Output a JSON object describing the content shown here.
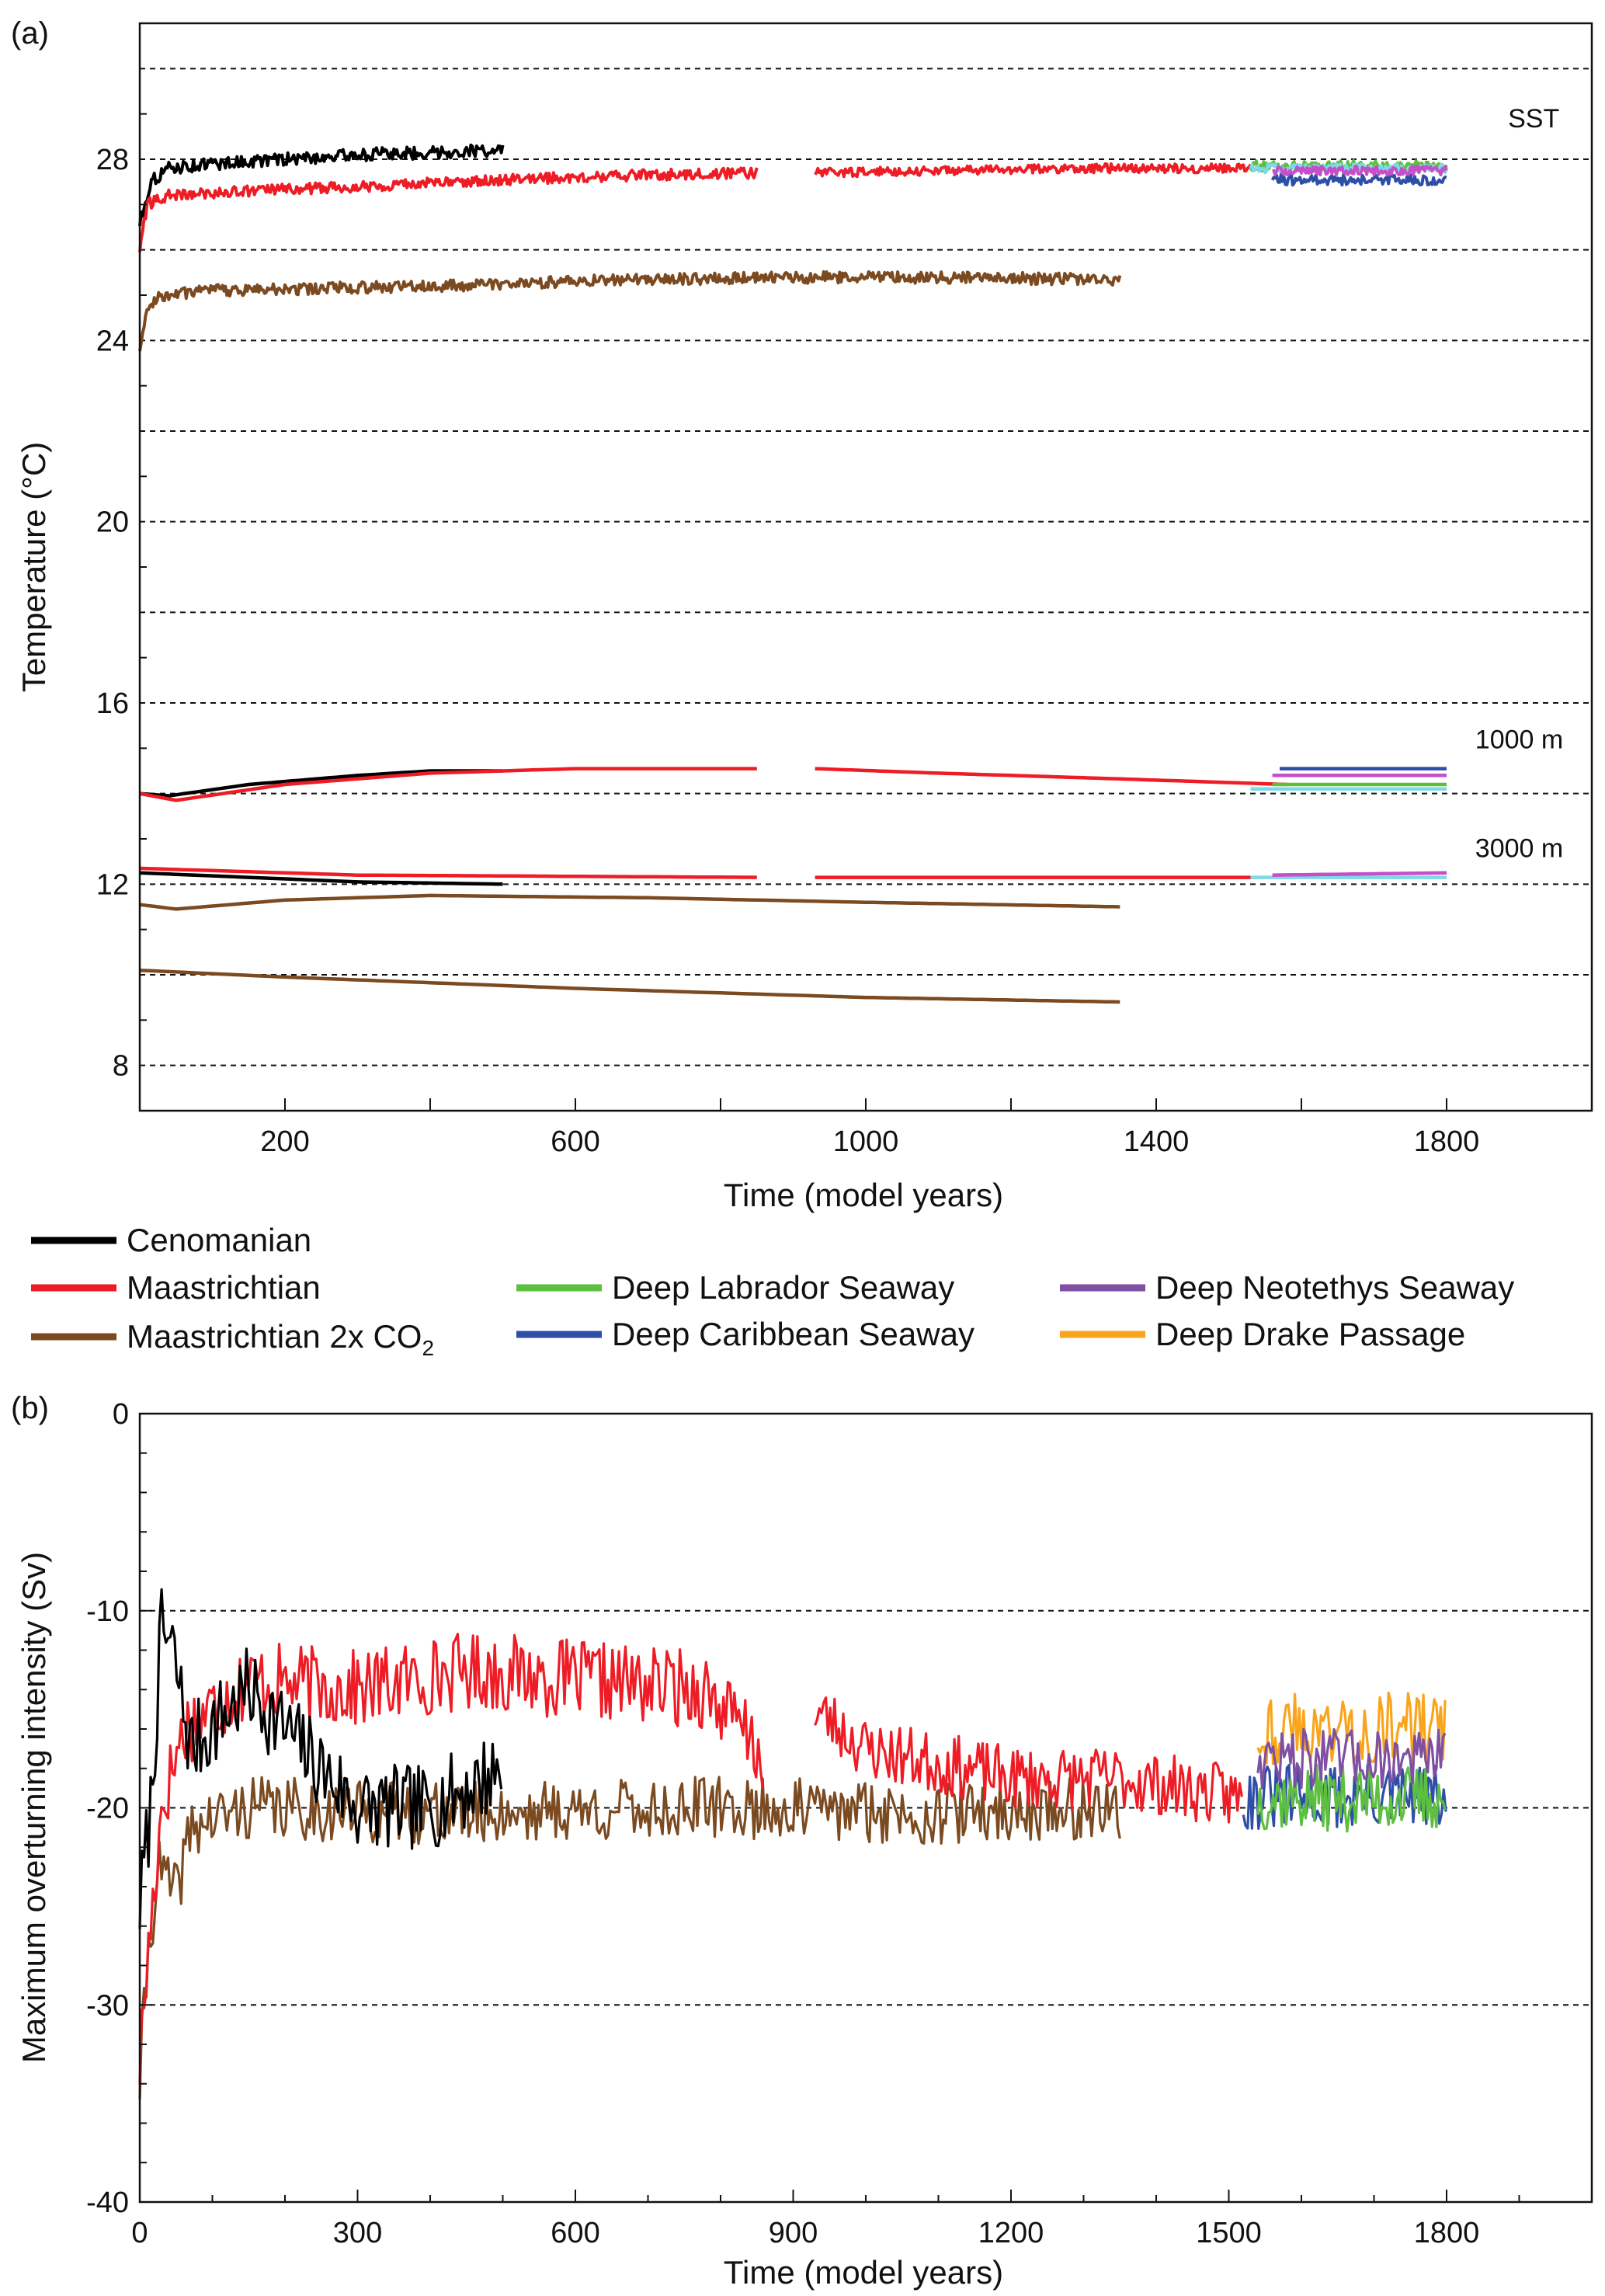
{
  "figure": {
    "legend": {
      "entries": [
        {
          "label": "Cenomanian",
          "color": "#000000"
        },
        {
          "label": "Maastrichtian",
          "color": "#ee1c25"
        },
        {
          "label": "Maastrichtian 2x CO",
          "subscript": "2",
          "color": "#7b4a20"
        },
        {
          "label": "Deep Labrador Seaway",
          "color": "#5cbf3f"
        },
        {
          "label": "Deep Caribbean Seaway",
          "color": "#2e4ea8"
        },
        {
          "label": "Deep Neotethys Seaway",
          "color": "#7e4fa2"
        },
        {
          "label": "Deep Drake Passage",
          "color": "#f9a51b"
        }
      ]
    }
  },
  "chart_data": [
    {
      "id": "a",
      "panel_label": "(a)",
      "type": "line",
      "title": "",
      "xlabel": "Time (model years)",
      "ylabel": "Temperature (°C)",
      "xlim": [
        0,
        2000
      ],
      "ylim": [
        7,
        31
      ],
      "xticks_labeled": [
        200,
        600,
        1000,
        1400,
        1800
      ],
      "xticks_minor": [
        400,
        800,
        1200,
        1600
      ],
      "yticks_labeled": [
        8,
        12,
        16,
        20,
        24,
        28
      ],
      "gridlines_y": [
        8,
        10,
        12,
        14,
        16,
        18,
        20,
        22,
        24,
        26,
        28,
        30
      ],
      "grid": "dashed horizontal",
      "annotations": [
        {
          "text": "SST",
          "x": 1920,
          "y": 28.7
        },
        {
          "text": "1000 m",
          "x": 1900,
          "y": 15.0
        },
        {
          "text": "3000 m",
          "x": 1900,
          "y": 12.6
        }
      ],
      "series": [
        {
          "name": "Cenomanian",
          "level": "SST",
          "color": "#000000",
          "x_start": 0,
          "x_end": 500,
          "noise": 0.14,
          "points": [
            [
              0,
              26.6
            ],
            [
              15,
              27.5
            ],
            [
              40,
              27.8
            ],
            [
              100,
              27.9
            ],
            [
              200,
              28.0
            ],
            [
              300,
              28.1
            ],
            [
              400,
              28.15
            ],
            [
              500,
              28.2
            ]
          ]
        },
        {
          "name": "Maastrichtian",
          "level": "SST",
          "color": "#ee1c25",
          "x_start": 0,
          "x_end": 850,
          "noise": 0.12,
          "points": [
            [
              0,
              26.0
            ],
            [
              10,
              27.0
            ],
            [
              40,
              27.2
            ],
            [
              150,
              27.3
            ],
            [
              300,
              27.4
            ],
            [
              500,
              27.55
            ],
            [
              700,
              27.65
            ],
            [
              850,
              27.7
            ]
          ]
        },
        {
          "name": "Maastrichtian",
          "level": "SST",
          "color": "#ee1c25",
          "x_start": 930,
          "x_end": 1530,
          "noise": 0.1,
          "points": [
            [
              930,
              27.7
            ],
            [
              1100,
              27.75
            ],
            [
              1300,
              27.8
            ],
            [
              1530,
              27.8
            ]
          ]
        },
        {
          "name": "Maastrichtian 2x CO2",
          "level": "SST",
          "color": "#7b4a20",
          "x_start": 0,
          "x_end": 1350,
          "noise": 0.13,
          "points": [
            [
              0,
              23.8
            ],
            [
              8,
              24.6
            ],
            [
              30,
              25.0
            ],
            [
              100,
              25.1
            ],
            [
              400,
              25.2
            ],
            [
              700,
              25.35
            ],
            [
              1000,
              25.4
            ],
            [
              1350,
              25.35
            ]
          ]
        },
        {
          "name": "Deep Labrador Seaway",
          "level": "SST",
          "color": "#5cbf3f",
          "x_start": 1530,
          "x_end": 1800,
          "noise": 0.12,
          "points": [
            [
              1530,
              27.85
            ],
            [
              1800,
              27.85
            ]
          ]
        },
        {
          "name": "Deep Drake Passage",
          "level": "SST",
          "color": "#7fd8e6",
          "x_start": 1530,
          "x_end": 1800,
          "noise": 0.1,
          "points": [
            [
              1530,
              27.8
            ],
            [
              1800,
              27.8
            ]
          ]
        },
        {
          "name": "Deep Caribbean Seaway",
          "level": "SST",
          "color": "#2e4ea8",
          "x_start": 1560,
          "x_end": 1800,
          "noise": 0.12,
          "points": [
            [
              1560,
              27.55
            ],
            [
              1800,
              27.55
            ]
          ]
        },
        {
          "name": "Deep Neotethys Seaway",
          "level": "SST",
          "color": "#c44fc8",
          "x_start": 1560,
          "x_end": 1800,
          "noise": 0.1,
          "points": [
            [
              1560,
              27.75
            ],
            [
              1800,
              27.75
            ]
          ]
        },
        {
          "name": "Cenomanian",
          "level": "1000 m",
          "color": "#000000",
          "x_start": 0,
          "x_end": 500,
          "noise": 0,
          "points": [
            [
              0,
              14.0
            ],
            [
              40,
              13.95
            ],
            [
              150,
              14.2
            ],
            [
              300,
              14.4
            ],
            [
              400,
              14.5
            ],
            [
              500,
              14.5
            ]
          ]
        },
        {
          "name": "Maastrichtian",
          "level": "1000 m",
          "color": "#ee1c25",
          "x_start": 0,
          "x_end": 850,
          "noise": 0,
          "points": [
            [
              0,
              14.0
            ],
            [
              50,
              13.85
            ],
            [
              200,
              14.2
            ],
            [
              400,
              14.45
            ],
            [
              600,
              14.55
            ],
            [
              850,
              14.55
            ]
          ]
        },
        {
          "name": "Maastrichtian",
          "level": "1000 m",
          "color": "#ee1c25",
          "x_start": 930,
          "x_end": 1580,
          "noise": 0,
          "points": [
            [
              930,
              14.55
            ],
            [
              1100,
              14.45
            ],
            [
              1300,
              14.35
            ],
            [
              1580,
              14.2
            ]
          ]
        },
        {
          "name": "Deep Caribbean Seaway",
          "level": "1000 m",
          "color": "#2e4ea8",
          "x_start": 1570,
          "x_end": 1800,
          "noise": 0,
          "points": [
            [
              1570,
              14.55
            ],
            [
              1800,
              14.55
            ]
          ]
        },
        {
          "name": "Deep Neotethys Seaway",
          "level": "1000 m",
          "color": "#c44fc8",
          "x_start": 1560,
          "x_end": 1800,
          "noise": 0,
          "points": [
            [
              1560,
              14.4
            ],
            [
              1800,
              14.4
            ]
          ]
        },
        {
          "name": "Deep Labrador Seaway",
          "level": "1000 m",
          "color": "#5cbf3f",
          "x_start": 1560,
          "x_end": 1800,
          "noise": 0,
          "points": [
            [
              1560,
              14.2
            ],
            [
              1800,
              14.2
            ]
          ]
        },
        {
          "name": "Deep Drake Passage",
          "level": "1000 m",
          "color": "#7fd8e6",
          "x_start": 1530,
          "x_end": 1800,
          "noise": 0,
          "points": [
            [
              1530,
              14.1
            ],
            [
              1800,
              14.1
            ]
          ]
        },
        {
          "name": "Cenomanian",
          "level": "3000 m",
          "color": "#000000",
          "x_start": 0,
          "x_end": 500,
          "noise": 0,
          "points": [
            [
              0,
              12.25
            ],
            [
              150,
              12.15
            ],
            [
              300,
              12.05
            ],
            [
              500,
              12.0
            ]
          ]
        },
        {
          "name": "Maastrichtian",
          "level": "3000 m",
          "color": "#ee1c25",
          "x_start": 0,
          "x_end": 850,
          "noise": 0,
          "points": [
            [
              0,
              12.35
            ],
            [
              100,
              12.3
            ],
            [
              300,
              12.2
            ],
            [
              850,
              12.15
            ]
          ]
        },
        {
          "name": "Maastrichtian",
          "level": "3000 m",
          "color": "#ee1c25",
          "x_start": 930,
          "x_end": 1530,
          "noise": 0,
          "points": [
            [
              930,
              12.15
            ],
            [
              1530,
              12.15
            ]
          ]
        },
        {
          "name": "Deep Drake Passage",
          "level": "3000 m",
          "color": "#7fd8e6",
          "x_start": 1530,
          "x_end": 1800,
          "noise": 0,
          "points": [
            [
              1530,
              12.15
            ],
            [
              1800,
              12.15
            ]
          ]
        },
        {
          "name": "Deep Neotethys Seaway",
          "level": "3000 m",
          "color": "#c44fc8",
          "x_start": 1560,
          "x_end": 1800,
          "noise": 0,
          "points": [
            [
              1560,
              12.2
            ],
            [
              1800,
              12.25
            ]
          ]
        },
        {
          "name": "Maastrichtian 2x CO2",
          "level": "1000 m",
          "color": "#7b4a20",
          "x_start": 0,
          "x_end": 1350,
          "noise": 0,
          "points": [
            [
              0,
              11.55
            ],
            [
              50,
              11.45
            ],
            [
              200,
              11.65
            ],
            [
              400,
              11.75
            ],
            [
              700,
              11.7
            ],
            [
              1000,
              11.6
            ],
            [
              1350,
              11.5
            ]
          ]
        },
        {
          "name": "Maastrichtian 2x CO2",
          "level": "3000 m",
          "color": "#7b4a20",
          "x_start": 0,
          "x_end": 1350,
          "noise": 0,
          "points": [
            [
              0,
              10.1
            ],
            [
              200,
              9.95
            ],
            [
              600,
              9.7
            ],
            [
              1000,
              9.5
            ],
            [
              1350,
              9.4
            ]
          ]
        }
      ]
    },
    {
      "id": "b",
      "panel_label": "(b)",
      "type": "line",
      "title": "",
      "xlabel": "Time (model years)",
      "ylabel": "Maximum overturning intensity (Sv)",
      "xlim": [
        0,
        2000
      ],
      "ylim": [
        -40,
        0
      ],
      "xticks_labeled": [
        0,
        300,
        600,
        900,
        1200,
        1500,
        1800
      ],
      "yticks_labeled": [
        -40,
        -30,
        -20,
        -10,
        0
      ],
      "gridlines_y": [
        -10,
        -20,
        -30
      ],
      "grid": "dashed horizontal",
      "series": [
        {
          "name": "Maastrichtian 2x CO2",
          "color": "#7b4a20",
          "x_start": 0,
          "x_end": 1350,
          "noise": 1.6,
          "seed": 41,
          "points": [
            [
              0,
              -34
            ],
            [
              10,
              -28
            ],
            [
              25,
              -23
            ],
            [
              50,
              -24.5
            ],
            [
              70,
              -21
            ],
            [
              150,
              -20
            ],
            [
              400,
              -20.3
            ],
            [
              800,
              -20
            ],
            [
              1100,
              -20.3
            ],
            [
              1350,
              -20
            ]
          ]
        },
        {
          "name": "Maastrichtian",
          "color": "#ee1c25",
          "x_start": 0,
          "x_end": 860,
          "noise": 2.0,
          "seed": 17,
          "points": [
            [
              0,
              -33
            ],
            [
              10,
              -28
            ],
            [
              30,
              -20
            ],
            [
              60,
              -16
            ],
            [
              150,
              -13.5
            ],
            [
              300,
              -14
            ],
            [
              450,
              -13
            ],
            [
              600,
              -13.5
            ],
            [
              780,
              -14
            ],
            [
              850,
              -17
            ],
            [
              860,
              -17.5
            ]
          ]
        },
        {
          "name": "Maastrichtian",
          "color": "#ee1c25",
          "x_start": 930,
          "x_end": 1520,
          "noise": 1.6,
          "seed": 23,
          "points": [
            [
              930,
              -15
            ],
            [
              1000,
              -17
            ],
            [
              1200,
              -18.5
            ],
            [
              1350,
              -18.5
            ],
            [
              1520,
              -19.5
            ]
          ]
        },
        {
          "name": "Cenomanian",
          "color": "#000000",
          "x_start": 0,
          "x_end": 500,
          "noise": 2.2,
          "seed": 7,
          "points": [
            [
              0,
              -25
            ],
            [
              15,
              -20
            ],
            [
              30,
              -11
            ],
            [
              45,
              -12
            ],
            [
              70,
              -17
            ],
            [
              150,
              -14
            ],
            [
              200,
              -16
            ],
            [
              300,
              -20
            ],
            [
              400,
              -20
            ],
            [
              500,
              -18
            ]
          ]
        },
        {
          "name": "Deep Caribbean Seaway",
          "color": "#2e4ea8",
          "x_start": 1520,
          "x_end": 1800,
          "noise": 1.7,
          "seed": 31,
          "points": [
            [
              1520,
              -19.5
            ],
            [
              1800,
              -19.5
            ]
          ]
        },
        {
          "name": "Deep Labrador Seaway",
          "color": "#5cbf3f",
          "x_start": 1540,
          "x_end": 1800,
          "noise": 1.7,
          "seed": 37,
          "points": [
            [
              1540,
              -19.5
            ],
            [
              1800,
              -19.5
            ]
          ]
        },
        {
          "name": "Deep Drake Passage",
          "color": "#f9a51b",
          "x_start": 1540,
          "x_end": 1800,
          "noise": 1.9,
          "seed": 43,
          "points": [
            [
              1540,
              -16
            ],
            [
              1800,
              -16
            ]
          ]
        },
        {
          "name": "Deep Neotethys Seaway",
          "color": "#7e4fa2",
          "x_start": 1540,
          "x_end": 1800,
          "noise": 1.5,
          "seed": 47,
          "points": [
            [
              1540,
              -17.5
            ],
            [
              1800,
              -17.5
            ]
          ]
        }
      ]
    }
  ]
}
